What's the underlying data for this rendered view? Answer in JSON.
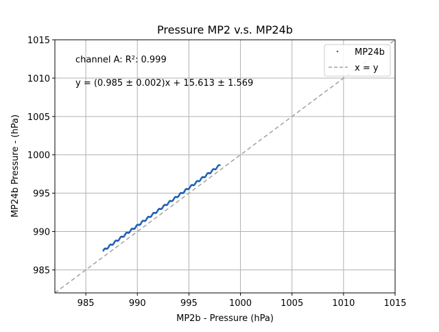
{
  "chart_data": {
    "type": "scatter",
    "title": "Pressure MP2 v.s. MP24b",
    "xlabel": "MP2b - Pressure (hPa)",
    "ylabel": "MP24b Pressure - (hPa)",
    "xlim": [
      982,
      1015
    ],
    "ylim": [
      982,
      1015
    ],
    "xticks": [
      985,
      990,
      995,
      1000,
      1005,
      1010,
      1015
    ],
    "yticks": [
      985,
      990,
      995,
      1000,
      1005,
      1010,
      1015
    ],
    "grid": true,
    "legend_position": "top-right",
    "annotations": [
      "channel A: R²: 0.999",
      "y = (0.985 ± 0.002)x + 15.613 ± 1.569"
    ],
    "series": [
      {
        "name": "MP24b",
        "kind": "scatter",
        "color": "#1f77b4",
        "x_range": [
          986.7,
          998.0
        ],
        "fit": {
          "slope": 0.985,
          "intercept": 15.613
        }
      },
      {
        "name": "x = y",
        "kind": "line",
        "style": "dashed",
        "color": "#a0a0a0",
        "x": [
          982,
          1015
        ],
        "y": [
          982,
          1015
        ]
      }
    ]
  }
}
